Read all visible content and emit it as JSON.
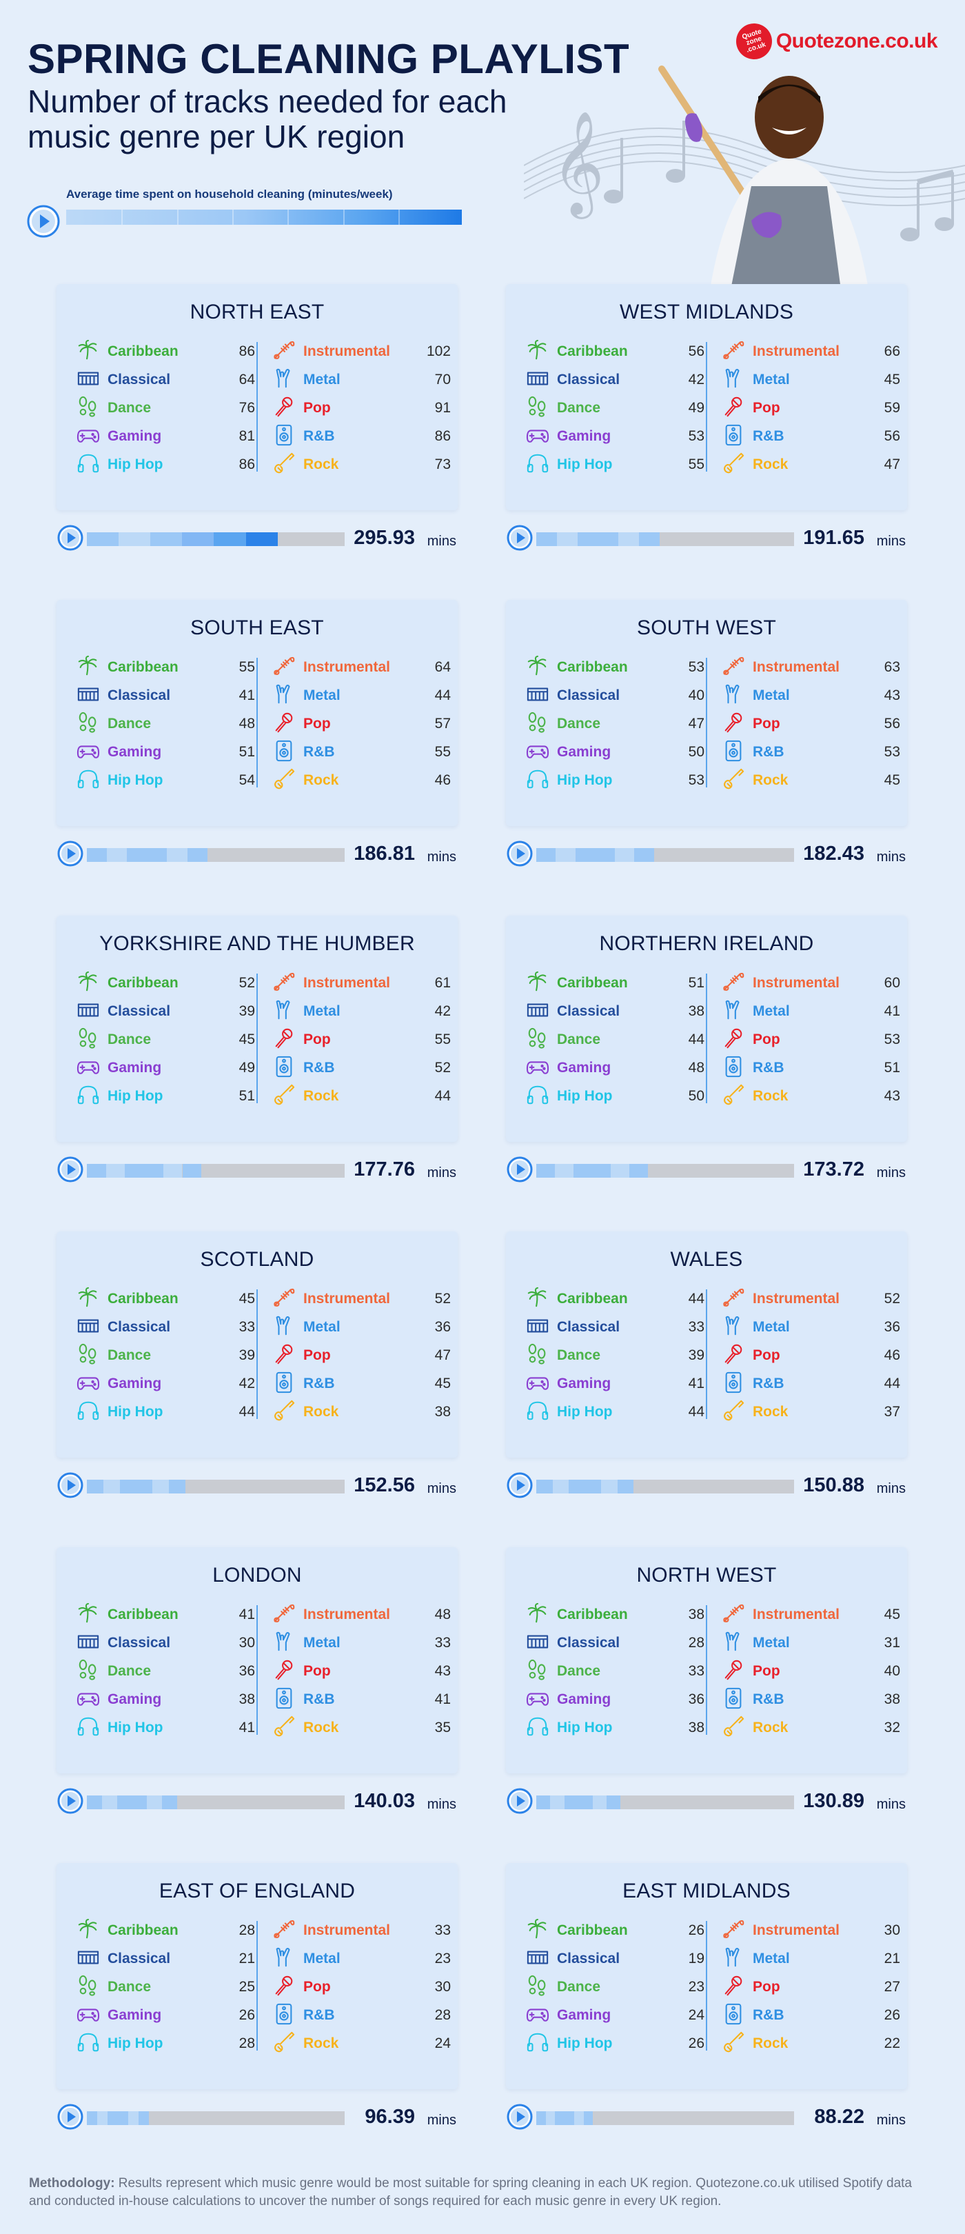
{
  "title": "SPRING CLEANING PLAYLIST",
  "subtitle": "Number of tracks needed for each music genre per UK region",
  "legend_label": "Average time spent on household cleaning (minutes/week)",
  "logo": {
    "badge": "Quote zone .co.uk",
    "text": "Quotezone.co.uk"
  },
  "unit": "mins",
  "colors": {
    "Caribbean": "#3cae3c",
    "Classical": "#244e9c",
    "Dance": "#4cb34a",
    "Gaming": "#8a3fd1",
    "Hip Hop": "#21c5e6",
    "Instrumental": "#f0673c",
    "Metal": "#2f8fe2",
    "Pop": "#e8212b",
    "R&B": "#2f8fe2",
    "Rock": "#f7b21b",
    "bar_light": "#bcd9f7",
    "bar_mid": "#9cc8f6",
    "bar_dark": "#2b82e8",
    "bar_empty": "#c9ccd2"
  },
  "icons": {
    "Caribbean": "palm-tree-icon",
    "Classical": "piano-icon",
    "Dance": "dance-steps-icon",
    "Gaming": "gamepad-icon",
    "Hip Hop": "headphones-icon",
    "Instrumental": "trumpet-icon",
    "Metal": "rock-hand-icon",
    "Pop": "microphone-icon",
    "R&B": "speaker-icon",
    "Rock": "guitar-icon"
  },
  "genres_left": [
    "Caribbean",
    "Classical",
    "Dance",
    "Gaming",
    "Hip Hop"
  ],
  "genres_right": [
    "Instrumental",
    "Metal",
    "Pop",
    "R&B",
    "Rock"
  ],
  "chart_data": {
    "type": "table",
    "title": "SPRING CLEANING PLAYLIST",
    "subtitle": "Number of tracks needed for each music genre per UK region",
    "time_label": "Average time spent on household cleaning (minutes/week)",
    "time_max": 400,
    "regions": [
      {
        "name": "NORTH EAST",
        "mins": "295.93",
        "values": {
          "Caribbean": 86,
          "Classical": 64,
          "Dance": 76,
          "Gaming": 81,
          "Hip Hop": 86,
          "Instrumental": 102,
          "Metal": 70,
          "Pop": 91,
          "R&B": 86,
          "Rock": 73
        }
      },
      {
        "name": "WEST MIDLANDS",
        "mins": "191.65",
        "values": {
          "Caribbean": 56,
          "Classical": 42,
          "Dance": 49,
          "Gaming": 53,
          "Hip Hop": 55,
          "Instrumental": 66,
          "Metal": 45,
          "Pop": 59,
          "R&B": 56,
          "Rock": 47
        }
      },
      {
        "name": "SOUTH EAST",
        "mins": "186.81",
        "values": {
          "Caribbean": 55,
          "Classical": 41,
          "Dance": 48,
          "Gaming": 51,
          "Hip Hop": 54,
          "Instrumental": 64,
          "Metal": 44,
          "Pop": 57,
          "R&B": 55,
          "Rock": 46
        }
      },
      {
        "name": "SOUTH WEST",
        "mins": "182.43",
        "values": {
          "Caribbean": 53,
          "Classical": 40,
          "Dance": 47,
          "Gaming": 50,
          "Hip Hop": 53,
          "Instrumental": 63,
          "Metal": 43,
          "Pop": 56,
          "R&B": 53,
          "Rock": 45
        }
      },
      {
        "name": "YORKSHIRE AND THE HUMBER",
        "mins": "177.76",
        "values": {
          "Caribbean": 52,
          "Classical": 39,
          "Dance": 45,
          "Gaming": 49,
          "Hip Hop": 51,
          "Instrumental": 61,
          "Metal": 42,
          "Pop": 55,
          "R&B": 52,
          "Rock": 44
        }
      },
      {
        "name": "NORTHERN IRELAND",
        "mins": "173.72",
        "values": {
          "Caribbean": 51,
          "Classical": 38,
          "Dance": 44,
          "Gaming": 48,
          "Hip Hop": 50,
          "Instrumental": 60,
          "Metal": 41,
          "Pop": 53,
          "R&B": 51,
          "Rock": 43
        }
      },
      {
        "name": "SCOTLAND",
        "mins": "152.56",
        "values": {
          "Caribbean": 45,
          "Classical": 33,
          "Dance": 39,
          "Gaming": 42,
          "Hip Hop": 44,
          "Instrumental": 52,
          "Metal": 36,
          "Pop": 47,
          "R&B": 45,
          "Rock": 38
        }
      },
      {
        "name": "WALES",
        "mins": "150.88",
        "values": {
          "Caribbean": 44,
          "Classical": 33,
          "Dance": 39,
          "Gaming": 41,
          "Hip Hop": 44,
          "Instrumental": 52,
          "Metal": 36,
          "Pop": 46,
          "R&B": 44,
          "Rock": 37
        }
      },
      {
        "name": "LONDON",
        "mins": "140.03",
        "values": {
          "Caribbean": 41,
          "Classical": 30,
          "Dance": 36,
          "Gaming": 38,
          "Hip Hop": 41,
          "Instrumental": 48,
          "Metal": 33,
          "Pop": 43,
          "R&B": 41,
          "Rock": 35
        }
      },
      {
        "name": "NORTH WEST",
        "mins": "130.89",
        "values": {
          "Caribbean": 38,
          "Classical": 28,
          "Dance": 33,
          "Gaming": 36,
          "Hip Hop": 38,
          "Instrumental": 45,
          "Metal": 31,
          "Pop": 40,
          "R&B": 38,
          "Rock": 32
        }
      },
      {
        "name": "EAST OF ENGLAND",
        "mins": "96.39",
        "values": {
          "Caribbean": 28,
          "Classical": 21,
          "Dance": 25,
          "Gaming": 26,
          "Hip Hop": 28,
          "Instrumental": 33,
          "Metal": 23,
          "Pop": 30,
          "R&B": 28,
          "Rock": 24
        }
      },
      {
        "name": "EAST MIDLANDS",
        "mins": "88.22",
        "values": {
          "Caribbean": 26,
          "Classical": 19,
          "Dance": 23,
          "Gaming": 24,
          "Hip Hop": 26,
          "Instrumental": 30,
          "Metal": 21,
          "Pop": 27,
          "R&B": 26,
          "Rock": 22
        }
      }
    ]
  },
  "methodology_label": "Methodology:",
  "methodology_text": " Results represent which music genre would be most suitable for spring cleaning in each UK region. Quotezone.co.uk utilised Spotify data and conducted in-house calculations to uncover the number of songs required for each music genre in every UK region."
}
